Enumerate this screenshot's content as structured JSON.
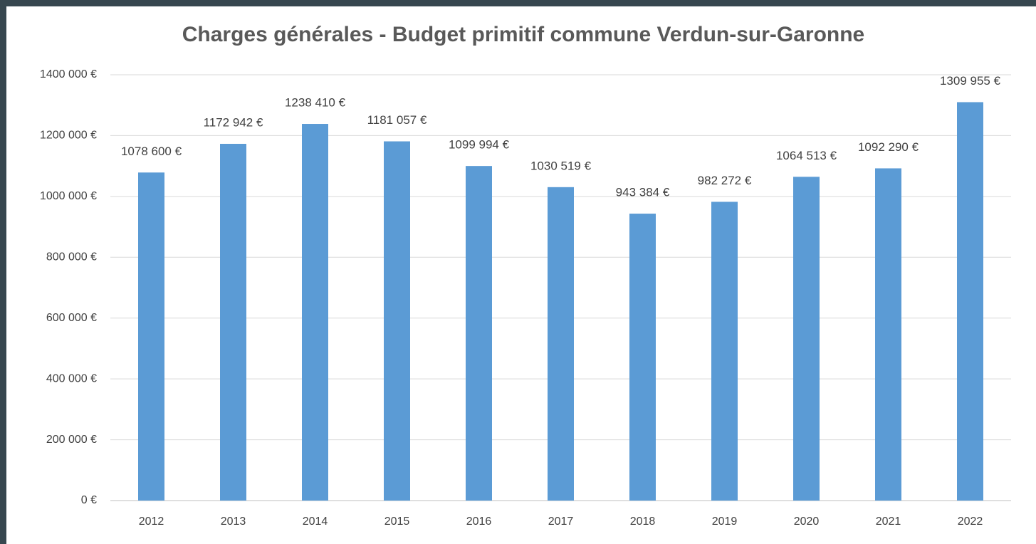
{
  "chart_data": {
    "type": "bar",
    "title": "Charges générales - Budget primitif commune Verdun-sur-Garonne",
    "categories": [
      "2012",
      "2013",
      "2014",
      "2015",
      "2016",
      "2017",
      "2018",
      "2019",
      "2020",
      "2021",
      "2022"
    ],
    "values": [
      1078600,
      1172942,
      1238410,
      1181057,
      1099994,
      1030519,
      943384,
      982272,
      1064513,
      1092290,
      1309955
    ],
    "value_labels": [
      "1078 600 €",
      "1172 942 €",
      "1238 410 €",
      "1181 057 €",
      "1099 994 €",
      "1030 519 €",
      "943 384 €",
      "982 272 €",
      "1064 513 €",
      "1092 290 €",
      "1309 955 €"
    ],
    "color": "#5b9bd5",
    "ylim": [
      0,
      1400000
    ],
    "yticks": [
      {
        "value": 0,
        "label": "0 €"
      },
      {
        "value": 200000,
        "label": "200 000 €"
      },
      {
        "value": 400000,
        "label": "400 000 €"
      },
      {
        "value": 600000,
        "label": "600 000 €"
      },
      {
        "value": 800000,
        "label": "800 000 €"
      },
      {
        "value": 1000000,
        "label": "1000 000 €"
      },
      {
        "value": 1200000,
        "label": "1200 000 €"
      },
      {
        "value": 1400000,
        "label": "1400 000 €"
      }
    ],
    "grid": true
  }
}
